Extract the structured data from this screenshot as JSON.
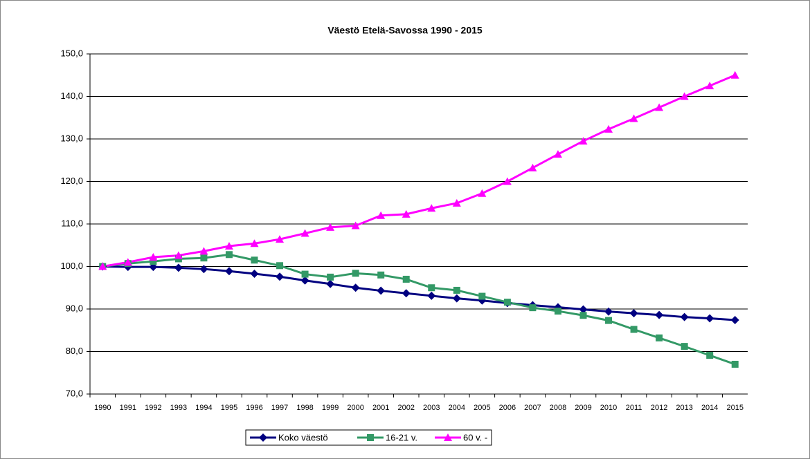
{
  "chart_data": {
    "type": "line",
    "title": "Väestö Etelä-Savossa 1990 - 2015",
    "categories": [
      "1990",
      "1991",
      "1992",
      "1993",
      "1994",
      "1995",
      "1996",
      "1997",
      "1998",
      "1999",
      "2000",
      "2001",
      "2002",
      "2003",
      "2004",
      "2005",
      "2006",
      "2007",
      "2008",
      "2009",
      "2010",
      "2011",
      "2012",
      "2013",
      "2014",
      "2015"
    ],
    "series": [
      {
        "name": "Koko väestö",
        "color": "#000080",
        "marker": "diamond",
        "values": [
          100,
          99.9,
          99.9,
          99.7,
          99.4,
          98.9,
          98.3,
          97.6,
          96.7,
          95.9,
          95.0,
          94.3,
          93.7,
          93.1,
          92.5,
          92.0,
          91.4,
          90.9,
          90.4,
          89.9,
          89.4,
          89.0,
          88.6,
          88.1,
          87.8,
          87.4
        ]
      },
      {
        "name": "16-21 v.",
        "color": "#339966",
        "marker": "square",
        "values": [
          100,
          100.7,
          101.2,
          101.8,
          102.0,
          102.8,
          101.5,
          100.2,
          98.2,
          97.5,
          98.4,
          98.0,
          97.0,
          95.0,
          94.4,
          93.0,
          91.6,
          90.3,
          89.5,
          88.5,
          87.3,
          85.2,
          83.2,
          81.2,
          79.1,
          77.0
        ]
      },
      {
        "name": "60 v. -",
        "color": "#ff00ff",
        "marker": "triangle",
        "values": [
          100,
          101.0,
          102.2,
          102.6,
          103.6,
          104.8,
          105.4,
          106.4,
          107.8,
          109.2,
          109.6,
          112.0,
          112.3,
          113.7,
          114.9,
          117.2,
          120.0,
          123.2,
          126.4,
          129.5,
          132.3,
          134.8,
          137.4,
          140.0,
          142.5,
          145.0
        ]
      }
    ],
    "ylim": [
      70,
      150
    ],
    "yticks": [
      {
        "value": 70,
        "label": "70,0"
      },
      {
        "value": 80,
        "label": "80,0"
      },
      {
        "value": 90,
        "label": "90,0"
      },
      {
        "value": 100,
        "label": "100,0"
      },
      {
        "value": 110,
        "label": "110,0"
      },
      {
        "value": 120,
        "label": "120,0"
      },
      {
        "value": 130,
        "label": "130,0"
      },
      {
        "value": 140,
        "label": "140,0"
      },
      {
        "value": 150,
        "label": "150,0"
      }
    ],
    "grid": true,
    "legend": "bottom"
  }
}
